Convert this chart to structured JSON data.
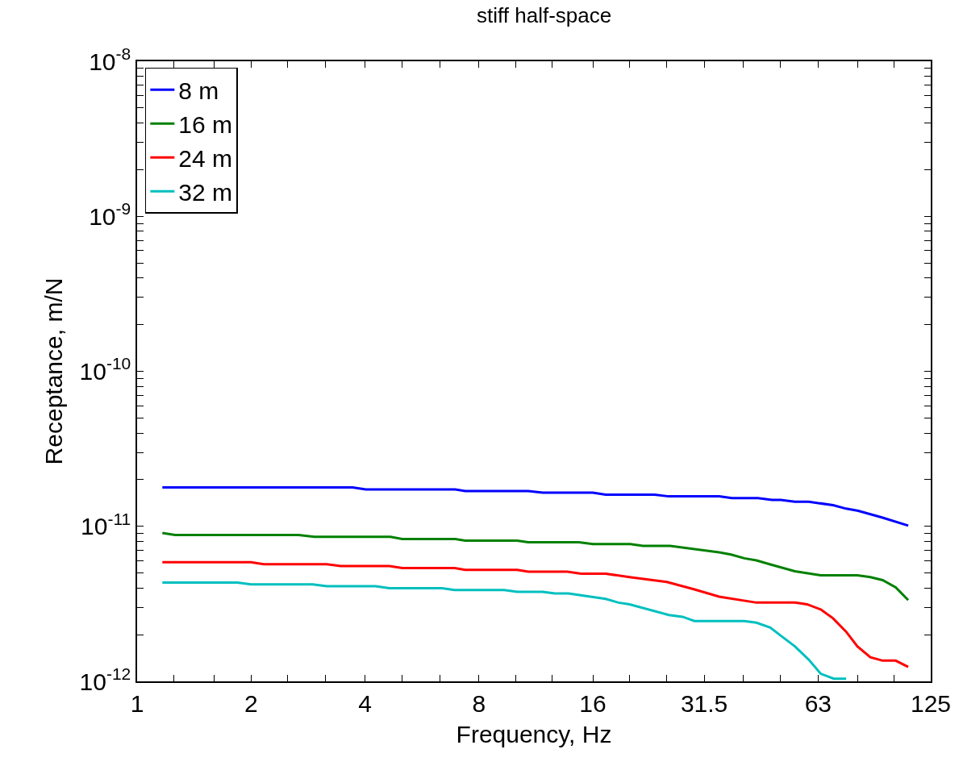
{
  "chart_data": {
    "type": "line",
    "title": "stiff half-space",
    "xlabel": "Frequency, Hz",
    "ylabel": "Receptance, m/N",
    "log": "xy",
    "grid": false,
    "legend": "top left",
    "marker": "none",
    "line_style": "solid",
    "xlim": [
      1,
      125
    ],
    "xticks": [
      1,
      {
        "value": 1.25,
        "label": null
      },
      {
        "value": 1.6,
        "label": null
      },
      2,
      {
        "value": 2.5,
        "label": null
      },
      {
        "value": 3.15,
        "label": null
      },
      4,
      {
        "value": 5,
        "label": null
      },
      {
        "value": 6.3,
        "label": null
      },
      8,
      {
        "value": 10,
        "label": null
      },
      {
        "value": 12.5,
        "label": null
      },
      16,
      {
        "value": 20,
        "label": null
      },
      {
        "value": 25,
        "label": null
      },
      31.5,
      {
        "value": 40,
        "label": null
      },
      {
        "value": 50,
        "label": null
      },
      63,
      {
        "value": 80,
        "label": null
      },
      {
        "value": 100,
        "label": null
      },
      125
    ],
    "ylim": [
      1e-12,
      1e-08
    ],
    "yticks": [
      {
        "value": 1e-12,
        "label": "10$^{-12}$"
      },
      {
        "value": 2e-12,
        "label": null
      },
      {
        "value": 3e-12,
        "label": null
      },
      {
        "value": 4e-12,
        "label": null
      },
      {
        "value": 5e-12,
        "label": null
      },
      {
        "value": 6e-12,
        "label": null
      },
      {
        "value": 7e-12,
        "label": null
      },
      {
        "value": 8e-12,
        "label": null
      },
      {
        "value": 9e-12,
        "label": null
      },
      {
        "value": 1e-11,
        "label": "10$^{-11}$"
      },
      {
        "value": 2e-11,
        "label": null
      },
      {
        "value": 3e-11,
        "label": null
      },
      {
        "value": 4e-11,
        "label": null
      },
      {
        "value": 5e-11,
        "label": null
      },
      {
        "value": 6e-11,
        "label": null
      },
      {
        "value": 7e-11,
        "label": null
      },
      {
        "value": 8e-11,
        "label": null
      },
      {
        "value": 9e-11,
        "label": null
      },
      {
        "value": 1e-10,
        "label": "10$^{-10}$"
      },
      {
        "value": 2e-10,
        "label": null
      },
      {
        "value": 3e-10,
        "label": null
      },
      {
        "value": 4e-10,
        "label": null
      },
      {
        "value": 5e-10,
        "label": null
      },
      {
        "value": 6e-10,
        "label": null
      },
      {
        "value": 7e-10,
        "label": null
      },
      {
        "value": 8e-10,
        "label": null
      },
      {
        "value": 9e-10,
        "label": null
      },
      {
        "value": 1e-09,
        "label": "10$^{-9}$"
      },
      {
        "value": 2e-09,
        "label": null
      },
      {
        "value": 3e-09,
        "label": null
      },
      {
        "value": 4e-09,
        "label": null
      },
      {
        "value": 5e-09,
        "label": null
      },
      {
        "value": 6e-09,
        "label": null
      },
      {
        "value": 7e-09,
        "label": null
      },
      {
        "value": 8e-09,
        "label": null
      },
      {
        "value": 9e-09,
        "label": null
      },
      {
        "value": 1e-08,
        "label": "10$^{-8}$"
      }
    ],
    "series": [
      {
        "name": "8 m",
        "color": "#0000ff",
        "x": [
          1.166,
          3.71,
          4.02,
          6.93,
          7.36,
          10.8,
          11.8,
          16.0,
          17.3,
          23.3,
          25.4,
          34.5,
          37.3,
          43.7,
          47.6,
          50.2,
          54.7,
          59.5,
          69.0,
          74.7,
          80.4,
          92.9,
          109
        ],
        "values": [
          1.78e-11,
          1.78e-11,
          1.73e-11,
          1.73e-11,
          1.69e-11,
          1.69e-11,
          1.65e-11,
          1.65e-11,
          1.6e-11,
          1.6e-11,
          1.56e-11,
          1.56e-11,
          1.52e-11,
          1.52e-11,
          1.48e-11,
          1.48e-11,
          1.44e-11,
          1.44e-11,
          1.37e-11,
          1.3e-11,
          1.26e-11,
          1.14e-11,
          1.01e-11
        ]
      },
      {
        "name": "16 m",
        "color": "#008000",
        "x": [
          1.166,
          1.26,
          2.67,
          2.94,
          4.67,
          5.02,
          6.93,
          7.36,
          10.1,
          10.8,
          14.7,
          16.0,
          20.1,
          21.7,
          25.6,
          29.7,
          34.5,
          37.1,
          40.2,
          43.3,
          47.1,
          54.7,
          64.0,
          80.0,
          86.6,
          93.3,
          101,
          109
        ],
        "values": [
          9.05e-12,
          8.8e-12,
          8.8e-12,
          8.56e-12,
          8.56e-12,
          8.29e-12,
          8.29e-12,
          8.09e-12,
          8.09e-12,
          7.9e-12,
          7.9e-12,
          7.68e-12,
          7.68e-12,
          7.47e-12,
          7.47e-12,
          7.12e-12,
          6.79e-12,
          6.58e-12,
          6.22e-12,
          6.03e-12,
          5.68e-12,
          5.13e-12,
          4.83e-12,
          4.83e-12,
          4.7e-12,
          4.5e-12,
          4.04e-12,
          3.34e-12
        ]
      },
      {
        "name": "24 m",
        "color": "#ff0000",
        "x": [
          1.166,
          2.0,
          2.16,
          3.17,
          3.45,
          4.64,
          5.02,
          6.9,
          7.36,
          10.1,
          10.8,
          13.7,
          14.9,
          17.3,
          20.0,
          25.1,
          29.7,
          34.5,
          43.3,
          54.7,
          58.9,
          64.0,
          69.0,
          74.7,
          80.0,
          86.6,
          93.3,
          101,
          109
        ],
        "values": [
          5.86e-12,
          5.86e-12,
          5.69e-12,
          5.69e-12,
          5.54e-12,
          5.54e-12,
          5.38e-12,
          5.38e-12,
          5.24e-12,
          5.24e-12,
          5.1e-12,
          5.1e-12,
          4.95e-12,
          4.95e-12,
          4.7e-12,
          4.38e-12,
          3.92e-12,
          3.52e-12,
          3.22e-12,
          3.22e-12,
          3.14e-12,
          2.91e-12,
          2.55e-12,
          2.09e-12,
          1.68e-12,
          1.43e-12,
          1.36e-12,
          1.36e-12,
          1.24e-12
        ]
      },
      {
        "name": "32 m",
        "color": "#00bfbf",
        "x": [
          1.166,
          1.84,
          2.0,
          2.91,
          3.17,
          4.27,
          4.64,
          6.4,
          6.9,
          9.33,
          10.1,
          11.8,
          12.7,
          13.8,
          17.3,
          18.7,
          20.0,
          25.4,
          27.6,
          29.7,
          40.2,
          43.3,
          47.1,
          50.2,
          54.7,
          59.5,
          64.0,
          69.3,
          74.7
        ],
        "values": [
          4.34e-12,
          4.34e-12,
          4.22e-12,
          4.22e-12,
          4.11e-12,
          4.11e-12,
          3.99e-12,
          3.99e-12,
          3.88e-12,
          3.88e-12,
          3.78e-12,
          3.78e-12,
          3.69e-12,
          3.69e-12,
          3.4e-12,
          3.22e-12,
          3.14e-12,
          2.68e-12,
          2.61e-12,
          2.45e-12,
          2.45e-12,
          2.39e-12,
          2.22e-12,
          1.97e-12,
          1.68e-12,
          1.38e-12,
          1.12e-12,
          1.04e-12,
          1.04e-12
        ]
      }
    ]
  }
}
